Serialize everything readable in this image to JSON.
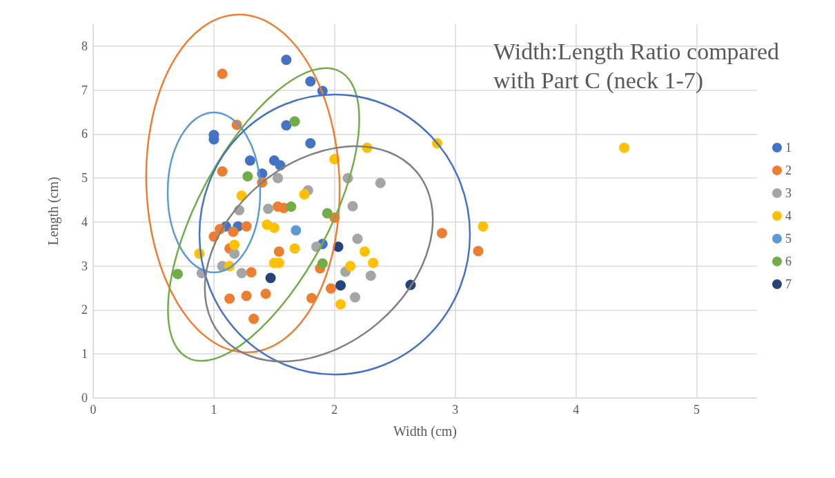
{
  "chart_data": {
    "type": "scatter",
    "title": "Width:Length Ratio compared with Part C (neck 1-7)",
    "xlabel": "Width (cm)",
    "ylabel": "Length (cm)",
    "xlim": [
      0,
      5.5
    ],
    "xticks": [
      0,
      1,
      2,
      3,
      4,
      5
    ],
    "ylim": [
      0,
      8.5
    ],
    "yticks": [
      0,
      1,
      2,
      3,
      4,
      5,
      6,
      7,
      8
    ],
    "grid": true,
    "legend": "right",
    "marker": "circle",
    "series": [
      {
        "name": "1",
        "color": "#4472c4",
        "x": [
          1.6,
          1.8,
          1.9,
          1.0,
          1.0,
          1.6,
          1.8,
          1.3,
          1.5,
          1.55,
          1.4,
          1.1,
          1.2,
          1.9
        ],
        "values": [
          7.69,
          7.2,
          6.98,
          5.98,
          5.88,
          6.2,
          5.79,
          5.4,
          5.4,
          5.29,
          5.1,
          3.9,
          3.9,
          3.5
        ]
      },
      {
        "name": "2",
        "color": "#ed7d31",
        "x": [
          1.07,
          1.19,
          1.07,
          1.4,
          1.53,
          1.58,
          1.05,
          1.0,
          1.16,
          1.27,
          1.13,
          2.0,
          1.54,
          1.31,
          1.13,
          1.27,
          1.43,
          1.33,
          1.81,
          1.97,
          1.88,
          2.89,
          3.19
        ],
        "values": [
          7.37,
          6.21,
          5.15,
          4.9,
          4.35,
          4.32,
          3.84,
          3.67,
          3.78,
          3.9,
          3.4,
          4.1,
          3.33,
          2.86,
          2.26,
          2.32,
          2.37,
          1.8,
          2.27,
          2.49,
          2.95,
          3.75,
          3.34
        ]
      },
      {
        "name": "3",
        "color": "#a5a5a5",
        "x": [
          1.53,
          1.78,
          1.21,
          1.45,
          2.11,
          2.15,
          2.38,
          1.17,
          1.07,
          0.9,
          1.23,
          1.85,
          2.19,
          2.09,
          2.3,
          2.17
        ],
        "values": [
          5.0,
          4.72,
          4.27,
          4.3,
          5.0,
          4.36,
          4.89,
          3.28,
          3.0,
          2.84,
          2.84,
          3.44,
          3.62,
          2.87,
          2.78,
          2.29
        ]
      },
      {
        "name": "4",
        "color": "#ffc000",
        "x": [
          2.27,
          2.0,
          2.85,
          4.4,
          1.23,
          1.75,
          1.44,
          1.5,
          1.17,
          0.88,
          1.13,
          1.67,
          1.5,
          1.54,
          3.23,
          2.25,
          2.32,
          2.13,
          2.05
        ],
        "values": [
          5.69,
          5.43,
          5.79,
          5.69,
          4.6,
          4.63,
          3.94,
          3.87,
          3.48,
          3.28,
          3.0,
          3.4,
          3.07,
          3.07,
          3.9,
          3.33,
          3.07,
          3.0,
          2.13
        ]
      },
      {
        "name": "5",
        "color": "#5b9bd5",
        "x": [
          1.68
        ],
        "values": [
          3.81
        ]
      },
      {
        "name": "6",
        "color": "#70ad47",
        "x": [
          1.67,
          1.28,
          1.64,
          1.94,
          0.7,
          1.9
        ],
        "values": [
          6.29,
          5.04,
          4.35,
          4.2,
          2.82,
          3.06
        ]
      },
      {
        "name": "7",
        "color": "#264478",
        "x": [
          1.47,
          2.03,
          2.05,
          2.63
        ],
        "values": [
          2.73,
          3.44,
          2.56,
          2.57
        ]
      }
    ]
  }
}
